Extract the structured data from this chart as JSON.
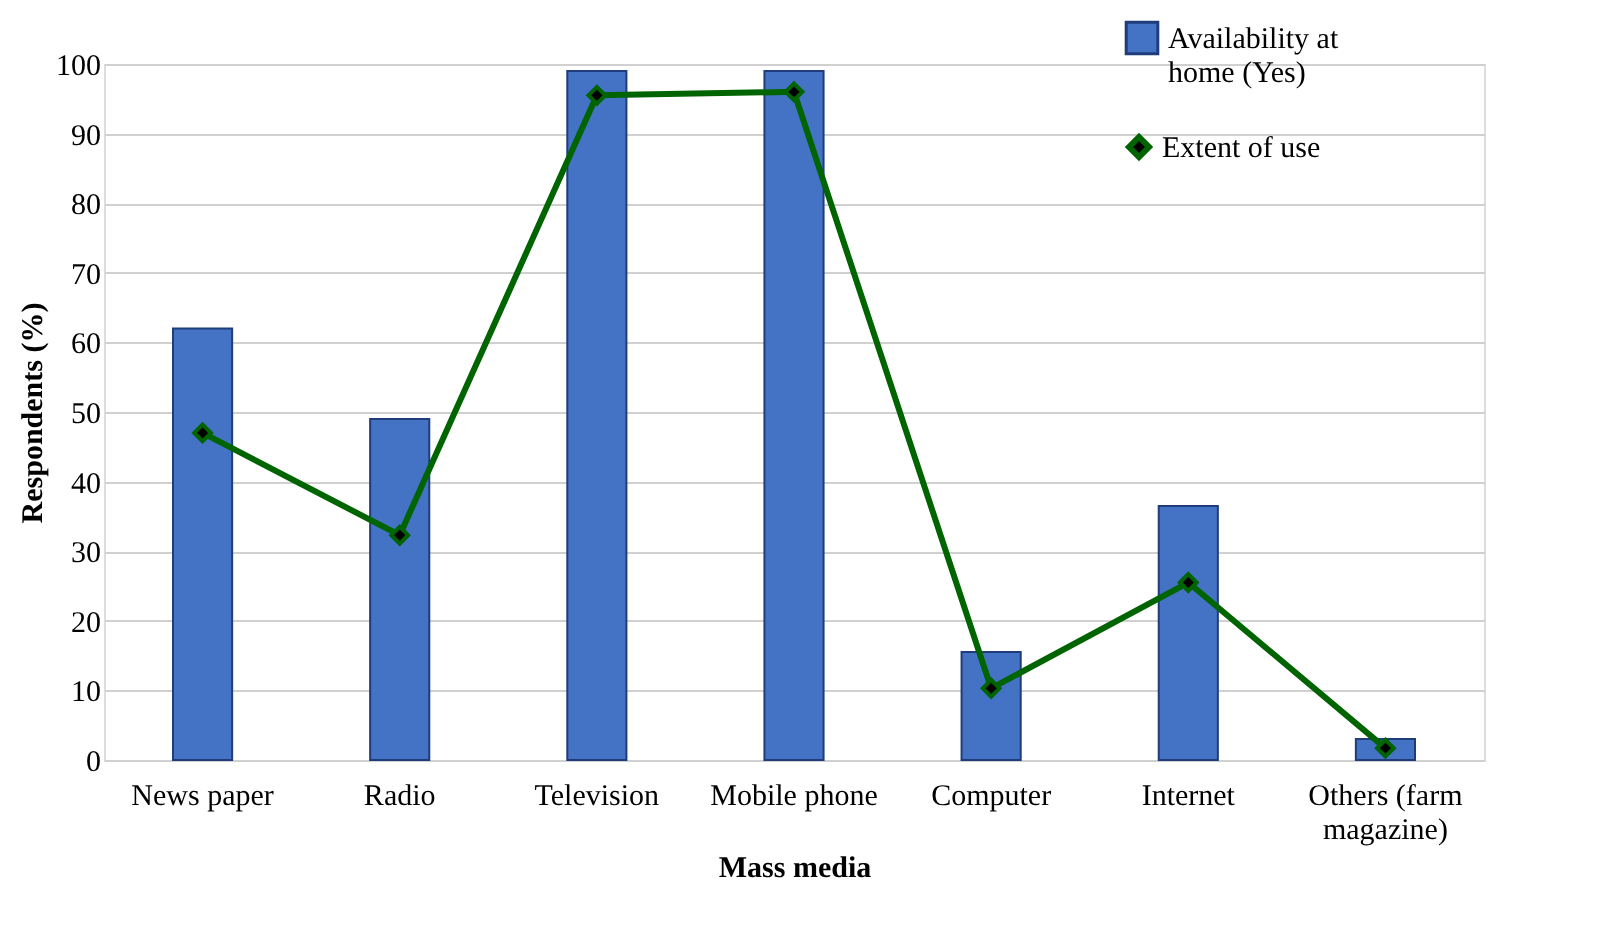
{
  "chart_data": {
    "type": "bar",
    "xlabel": "Mass media",
    "ylabel": "Respondents (%)",
    "categories": [
      "News paper",
      "Radio",
      "Television",
      "Mobile phone",
      "Computer",
      "Internet",
      "Others (farm magazine)"
    ],
    "series": [
      {
        "name": "Availability at home (Yes)",
        "color": "#4472c4",
        "values": [
          62,
          49,
          99,
          99,
          15.5,
          36.5,
          3
        ]
      },
      {
        "name": "Extent of use",
        "type": "line",
        "color": "#006400",
        "values": [
          47,
          32.3,
          95.5,
          96,
          10.3,
          25.5,
          1.7
        ]
      }
    ],
    "ylim": [
      0,
      100
    ],
    "yticks": [
      0,
      10,
      20,
      30,
      40,
      50,
      60,
      70,
      80,
      90,
      100
    ],
    "grid": "y",
    "legend": "top right",
    "marker": "diamond"
  }
}
